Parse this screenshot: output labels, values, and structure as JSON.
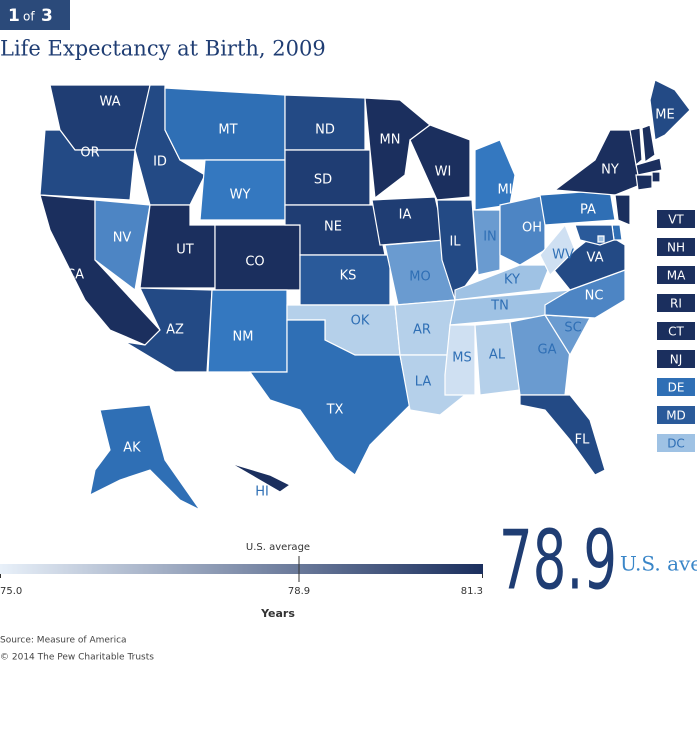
{
  "badge": {
    "page": 1,
    "of": "of",
    "total": 3
  },
  "title": "Life Expectancy at Birth, 2009",
  "states": [
    {
      "label": "WA",
      "color": "#1f3d73"
    },
    {
      "label": "OR",
      "color": "#234a85"
    },
    {
      "label": "CA",
      "color": "#1b2f5e"
    },
    {
      "label": "NV",
      "color": "#4d85c4"
    },
    {
      "label": "ID",
      "color": "#234a85"
    },
    {
      "label": "MT",
      "color": "#2f6fb5"
    },
    {
      "label": "WY",
      "color": "#3478c0"
    },
    {
      "label": "UT",
      "color": "#1b2f5e"
    },
    {
      "label": "CO",
      "color": "#1b2f5e"
    },
    {
      "label": "AZ",
      "color": "#234a85"
    },
    {
      "label": "NM",
      "color": "#3478c0"
    },
    {
      "label": "ND",
      "color": "#234a85"
    },
    {
      "label": "SD",
      "color": "#1f3d73"
    },
    {
      "label": "NE",
      "color": "#1f3d73"
    },
    {
      "label": "KS",
      "color": "#2a5a9a"
    },
    {
      "label": "OK",
      "color": "#b5d0ea"
    },
    {
      "label": "TX",
      "color": "#2f6fb5"
    },
    {
      "label": "MN",
      "color": "#1b2f5e"
    },
    {
      "label": "IA",
      "color": "#1f3d73"
    },
    {
      "label": "MO",
      "color": "#6a9bd0"
    },
    {
      "label": "AR",
      "color": "#b5d0ea"
    },
    {
      "label": "LA",
      "color": "#b5d0ea"
    },
    {
      "label": "WI",
      "color": "#1b2f5e"
    },
    {
      "label": "IL",
      "color": "#234a85"
    },
    {
      "label": "MI",
      "color": "#3478c0"
    },
    {
      "label": "IN",
      "color": "#6a9bd0"
    },
    {
      "label": "OH",
      "color": "#4d85c4"
    },
    {
      "label": "KY",
      "color": "#9fc2e4"
    },
    {
      "label": "TN",
      "color": "#9fc2e4"
    },
    {
      "label": "MS",
      "color": "#cfe0f2"
    },
    {
      "label": "AL",
      "color": "#b5d0ea"
    },
    {
      "label": "GA",
      "color": "#6a9bd0"
    },
    {
      "label": "FL",
      "color": "#234a85"
    },
    {
      "label": "SC",
      "color": "#6a9bd0"
    },
    {
      "label": "NC",
      "color": "#4d85c4"
    },
    {
      "label": "VA",
      "color": "#234a85"
    },
    {
      "label": "WV",
      "color": "#cfe0f2"
    },
    {
      "label": "PA",
      "color": "#2f6fb5"
    },
    {
      "label": "NY",
      "color": "#1b2f5e"
    },
    {
      "label": "ME",
      "color": "#234a85"
    },
    {
      "label": "AK",
      "color": "#2f6fb5"
    },
    {
      "label": "HI",
      "color": "#1b2f5e"
    },
    {
      "label": "VT",
      "color": "#1b2f5e"
    },
    {
      "label": "NH",
      "color": "#1b2f5e"
    },
    {
      "label": "MA",
      "color": "#1b2f5e"
    },
    {
      "label": "RI",
      "color": "#1b2f5e"
    },
    {
      "label": "CT",
      "color": "#1b2f5e"
    },
    {
      "label": "NJ",
      "color": "#1b2f5e"
    },
    {
      "label": "DE",
      "color": "#2f6fb5"
    },
    {
      "label": "MD",
      "color": "#2a5a9a"
    },
    {
      "label": "DC",
      "color": "#9fc2e4"
    }
  ],
  "legend": {
    "caption": "U.S. average",
    "min": {
      "value": 75,
      "label": "75.0"
    },
    "average": 78.9,
    "max": 81.3,
    "axis_title": "Years",
    "color_low": "#e8f0f9",
    "color_high": "#1b2f5e"
  },
  "big_value": 78.9,
  "big_label": "U.S. average",
  "source": "Source: Measure of America",
  "copyright": "© 2014 The Pew Charitable Trusts"
}
